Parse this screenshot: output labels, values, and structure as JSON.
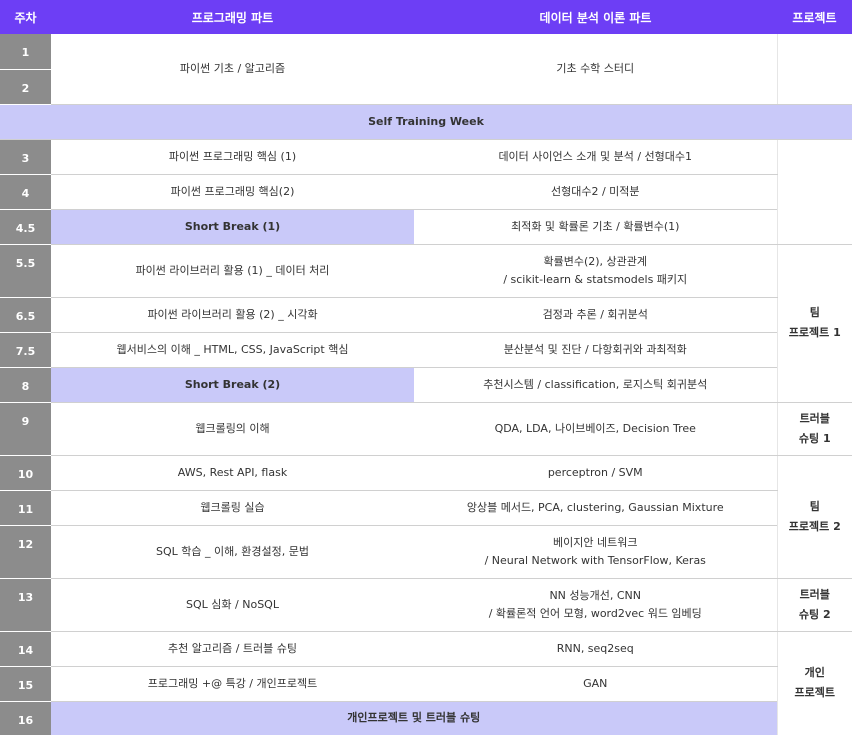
{
  "header": {
    "week": "주차",
    "programming": "프로그래밍 파트",
    "theory": "데이터 분석 이론 파트",
    "project": "프로젝트"
  },
  "rows": {
    "w1": "1",
    "w2": "2",
    "p12": "파이썬 기초 / 알고리즘",
    "t12": "기초 수학 스터디",
    "stw": "Self Training Week",
    "w3": "3",
    "p3": "파이썬 프로그래밍 핵심 (1)",
    "t3": "데이터 사이언스 소개 및 분석 / 선형대수1",
    "w4": "4",
    "p4": "파이썬 프로그래밍 핵심(2)",
    "t4": "선형대수2 / 미적분",
    "w45": "4.5",
    "p45": "Short Break (1)",
    "t45": "최적화 및 확률론 기초 / 확률변수(1)",
    "w55": "5.5",
    "p55": "파이썬 라이브러리 활용 (1) _ 데이터 처리",
    "t55a": "확률변수(2), 상관관계",
    "t55b": "/ scikit-learn & statsmodels 패키지",
    "w65": "6.5",
    "p65": "파이썬 라이브러리 활용 (2) _ 시각화",
    "t65": "검정과 추론 / 회귀분석",
    "w75": "7.5",
    "p75": "웹서비스의 이해 _ HTML, CSS, JavaScript 핵심",
    "t75": "분산분석 및 진단 / 다항회귀와 과최적화",
    "w8": "8",
    "p8": "Short Break (2)",
    "t8": "추천시스템 / classification, 로지스틱 회귀분석",
    "w9": "9",
    "p9": "웹크롤링의 이해",
    "t9": "QDA, LDA, 나이브베이즈, Decision Tree",
    "w10": "10",
    "p10": "AWS, Rest API, flask",
    "t10": "perceptron / SVM",
    "w11": "11",
    "p11": "웹크롤링 실습",
    "t11": "앙상블 메서드, PCA, clustering, Gaussian Mixture",
    "w12": "12",
    "p12b": "SQL 학습 _ 이해, 환경설정, 문법",
    "t12a": "베이지안 네트워크",
    "t12b": "/ Neural Network with TensorFlow, Keras",
    "w13": "13",
    "p13": "SQL 심화 / NoSQL",
    "t13a": "NN 성능개선, CNN",
    "t13b": "/ 확률론적 언어 모형, word2vec 워드 임베딩",
    "w14": "14",
    "p14": "추천 알고리즘 / 트러블 슈팅",
    "t14": "RNN, seq2seq",
    "w15": "15",
    "p15": "프로그래밍 +@ 특강 / 개인프로젝트",
    "t15": "GAN",
    "w16": "16",
    "p16": "개인프로젝트 및 트러블 슈팅"
  },
  "project": {
    "team1a": "팀",
    "team1b": "프로젝트 1",
    "trouble1a": "트러블",
    "trouble1b": "슈팅 1",
    "team2a": "팀",
    "team2b": "프로젝트 2",
    "trouble2a": "트러블",
    "trouble2b": "슈팅 2",
    "personala": "개인",
    "personalb": "프로젝트"
  },
  "colors": {
    "header_bg": "#6d3ef5",
    "week_bg": "#8c8c8c",
    "highlight_bg": "#c9c9f9"
  }
}
